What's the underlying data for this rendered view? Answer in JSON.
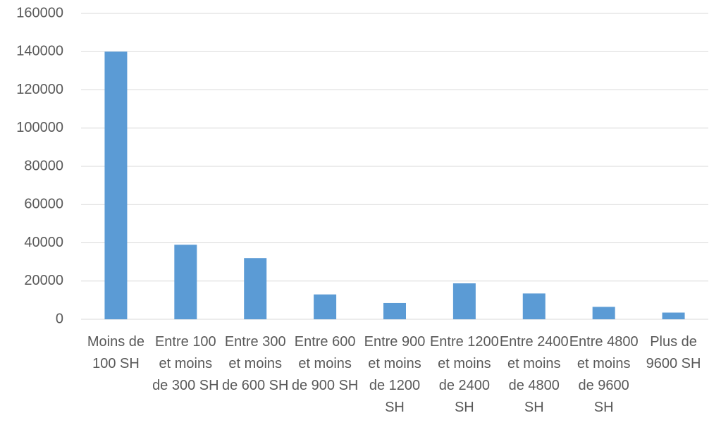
{
  "chart_data": {
    "type": "bar",
    "categories": [
      "Moins de 100 SH",
      "Entre 100 et moins de 300 SH",
      "Entre 300 et moins de 600 SH",
      "Entre 600 et moins de 900 SH",
      "Entre 900 et moins de 1200 SH",
      "Entre 1200 et moins de 2400 SH",
      "Entre 2400 et moins de 4800 SH",
      "Entre 4800 et moins de 9600 SH",
      "Plus de 9600 SH"
    ],
    "values": [
      140000,
      39000,
      32000,
      13000,
      8500,
      18800,
      13500,
      6500,
      3500
    ],
    "color": "#5b9bd5",
    "ylim": [
      0,
      160000
    ],
    "yticks": [
      0,
      20000,
      40000,
      60000,
      80000,
      100000,
      120000,
      140000,
      160000
    ],
    "grid": true
  }
}
